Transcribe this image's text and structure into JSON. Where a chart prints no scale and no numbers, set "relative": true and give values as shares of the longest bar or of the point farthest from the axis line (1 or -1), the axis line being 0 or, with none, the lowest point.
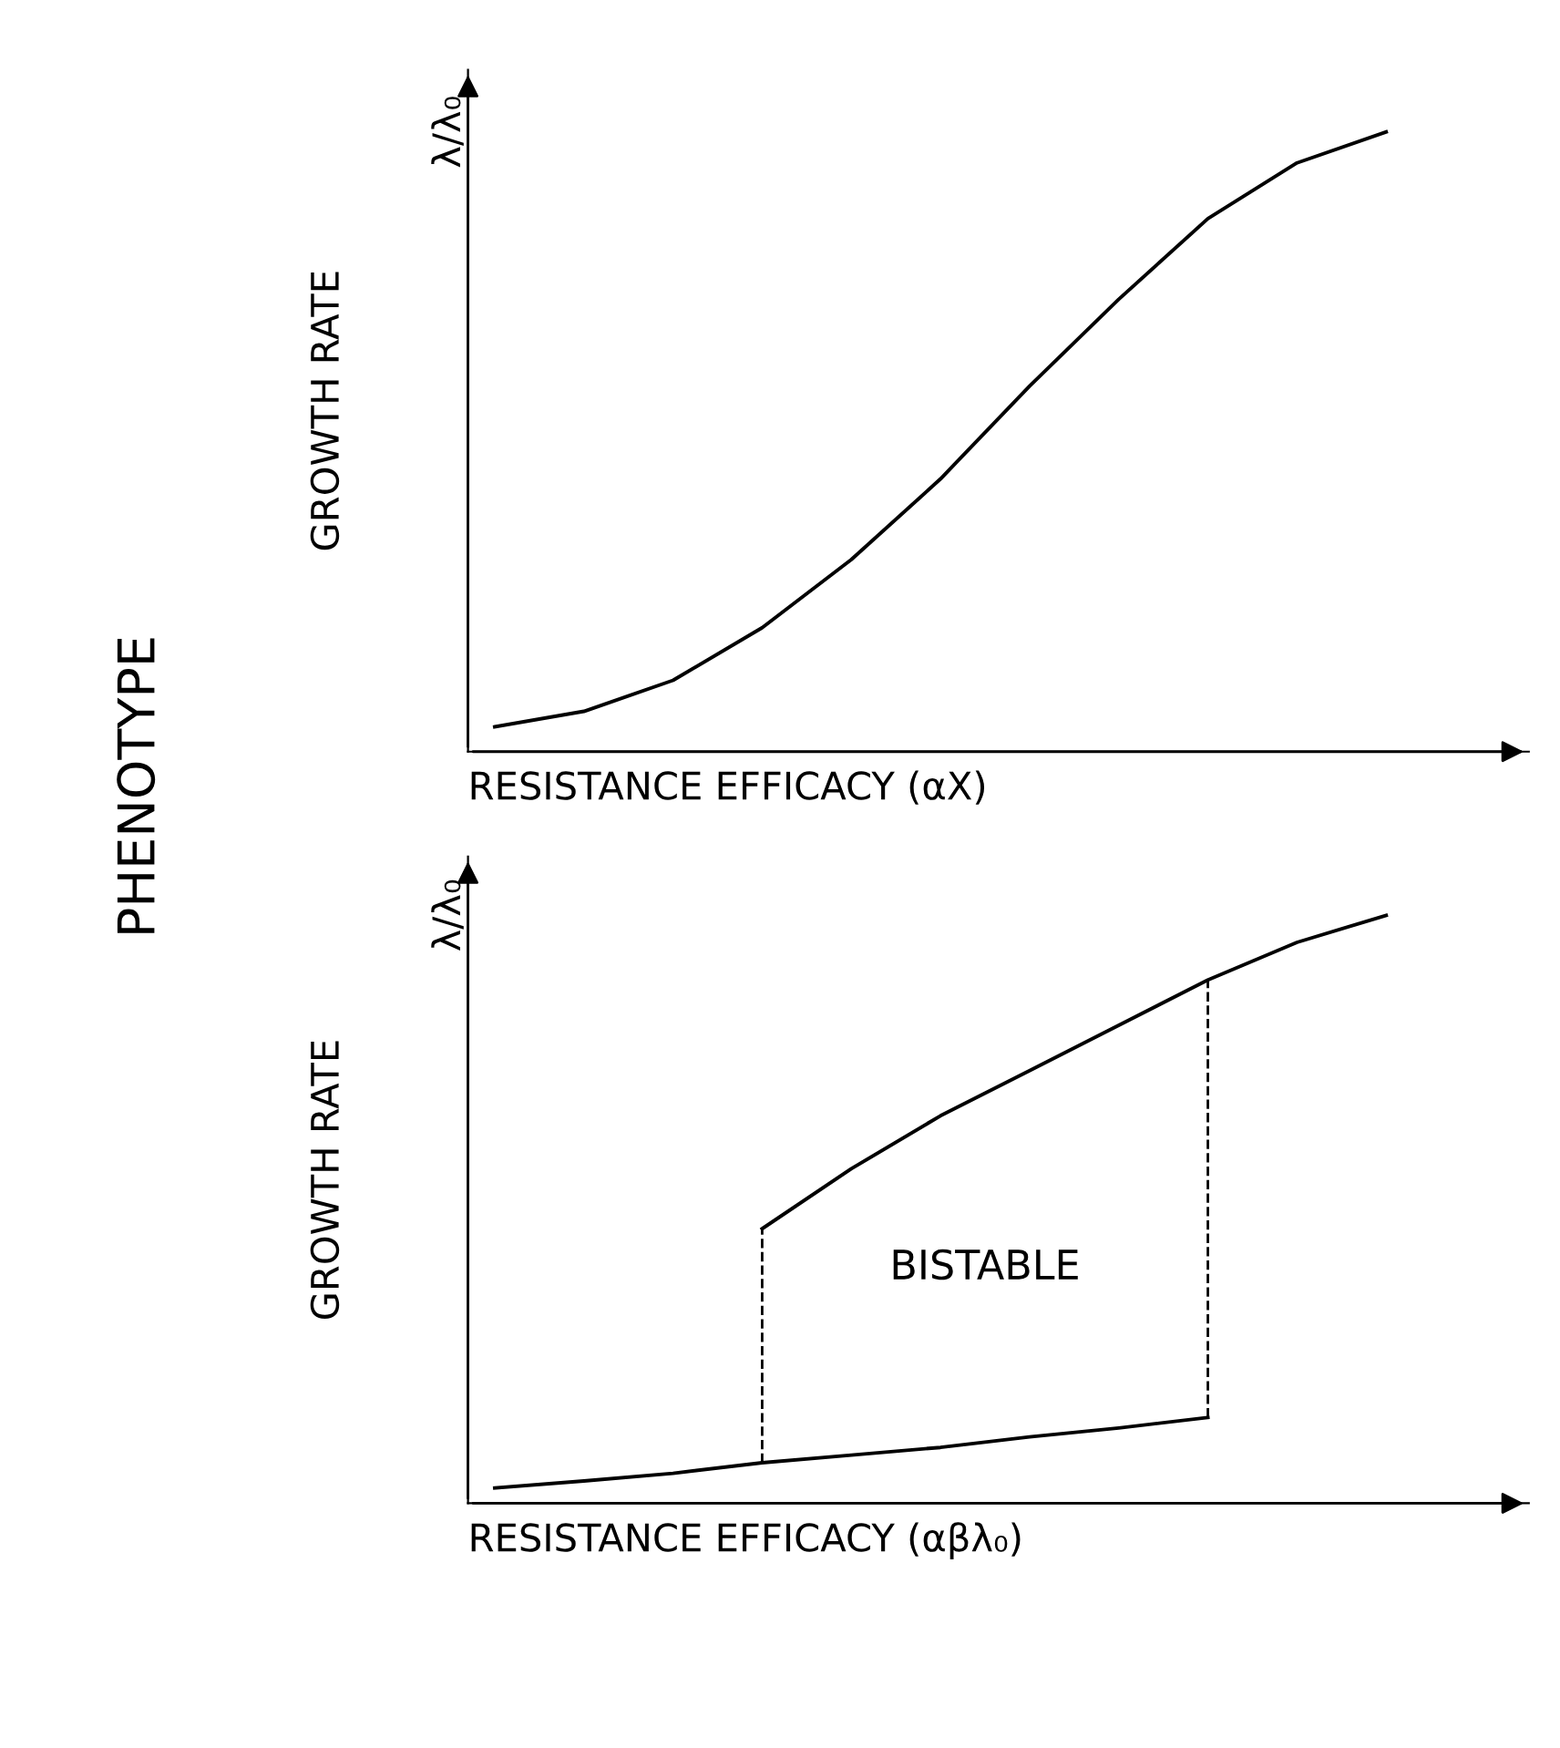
{
  "chart_data": [
    {
      "type": "line",
      "relative": true,
      "ylabel": "GROWTH RATE",
      "xlabel": "RESISTANCE EFFICACY (αX)",
      "categories": [
        null,
        null,
        null,
        null,
        null,
        null,
        null,
        null,
        null,
        null,
        null
      ],
      "series": [
        {
          "color": "#000000",
          "values": [
            0.04,
            0.065,
            0.115,
            0.2,
            0.31,
            0.44,
            0.59,
            0.73,
            0.86,
            0.95,
            1.0
          ]
        }
      ],
      "annotations": [
        "λ/λ₀",
        "PHENOTYPE"
      ]
    },
    {
      "type": "line",
      "relative": true,
      "ylabel": "GROWTH RATE",
      "xlabel": "RESISTANCE EFFICACY (αβλ₀)",
      "categories": [
        null,
        null,
        null,
        null,
        null,
        null,
        null,
        null,
        null,
        null,
        null
      ],
      "series": [
        {
          "color": "#000000",
          "values": [
            0.026,
            0.038,
            0.051,
            0.069,
            0.082,
            0.095,
            0.113,
            0.128,
            0.146,
            null,
            null
          ]
        },
        {
          "color": "#000000",
          "values": [
            null,
            null,
            null,
            0.467,
            0.569,
            0.659,
            0.736,
            0.813,
            0.89,
            0.954,
            1.0
          ]
        }
      ],
      "annotations": [
        "λ/λ₀",
        "BISTABLE"
      ]
    }
  ]
}
